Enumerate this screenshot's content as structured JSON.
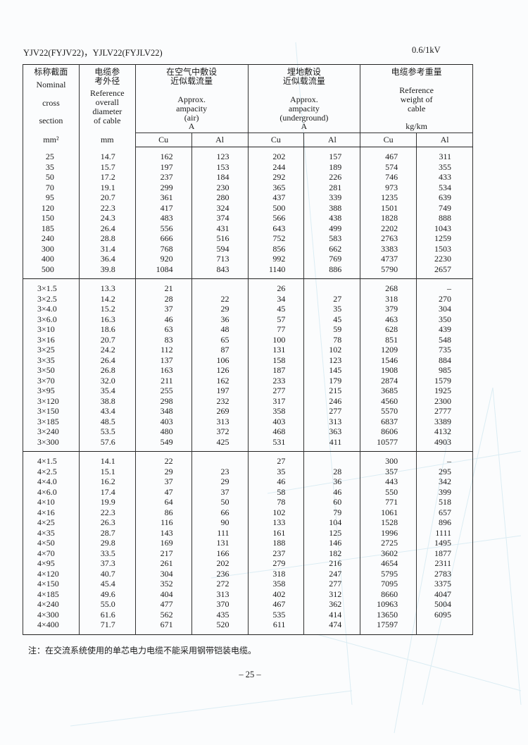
{
  "header": {
    "title": "YJV22(FYJV22)，YJLV22(FYJLV22)",
    "voltage": "0.6/1kV"
  },
  "columns": {
    "section": {
      "zh": "标称截面",
      "en": [
        "Nominal",
        "cross",
        "section"
      ],
      "unit": "mm²"
    },
    "diameter": {
      "zh": [
        "电缆参",
        "考外径"
      ],
      "en": [
        "Reference",
        "overall",
        "diameter",
        "of cable"
      ],
      "unit": "mm"
    },
    "air": {
      "zh": [
        "在空气中敷设",
        "近似载流量"
      ],
      "en": [
        "Approx.",
        "ampacity",
        "(air)"
      ],
      "unit": "A"
    },
    "underground": {
      "zh": [
        "埋地敷设",
        "近似载流量"
      ],
      "en": [
        "Approx.",
        "ampacity",
        "(underground)"
      ],
      "unit": "A"
    },
    "weight": {
      "zh": "电缆参考重量",
      "en": [
        "Reference",
        "weight of",
        "cable"
      ],
      "unit": "kg/km"
    },
    "sub": [
      "Cu",
      "Al",
      "Cu",
      "Al",
      "Cu",
      "Al"
    ]
  },
  "groups": [
    [
      [
        "25",
        "14.7",
        "162",
        "123",
        "202",
        "157",
        "467",
        "311"
      ],
      [
        "35",
        "15.7",
        "197",
        "153",
        "244",
        "189",
        "574",
        "355"
      ],
      [
        "50",
        "17.2",
        "237",
        "184",
        "292",
        "226",
        "746",
        "433"
      ],
      [
        "70",
        "19.1",
        "299",
        "230",
        "365",
        "281",
        "973",
        "534"
      ],
      [
        "95",
        "20.7",
        "361",
        "280",
        "437",
        "339",
        "1235",
        "639"
      ],
      [
        "120",
        "22.3",
        "417",
        "324",
        "500",
        "388",
        "1501",
        "749"
      ],
      [
        "150",
        "24.3",
        "483",
        "374",
        "566",
        "438",
        "1828",
        "888"
      ],
      [
        "185",
        "26.4",
        "556",
        "431",
        "643",
        "499",
        "2202",
        "1043"
      ],
      [
        "240",
        "28.8",
        "666",
        "516",
        "752",
        "583",
        "2763",
        "1259"
      ],
      [
        "300",
        "31.4",
        "768",
        "594",
        "856",
        "662",
        "3383",
        "1503"
      ],
      [
        "400",
        "36.4",
        "920",
        "713",
        "992",
        "769",
        "4737",
        "2230"
      ],
      [
        "500",
        "39.8",
        "1084",
        "843",
        "1140",
        "886",
        "5790",
        "2657"
      ]
    ],
    [
      [
        "3×1.5",
        "13.3",
        "21",
        "",
        "26",
        "",
        "268",
        "–"
      ],
      [
        "3×2.5",
        "14.2",
        "28",
        "22",
        "34",
        "27",
        "318",
        "270"
      ],
      [
        "3×4.0",
        "15.2",
        "37",
        "29",
        "45",
        "35",
        "379",
        "304"
      ],
      [
        "3×6.0",
        "16.3",
        "46",
        "36",
        "57",
        "45",
        "463",
        "350"
      ],
      [
        "3×10",
        "18.6",
        "63",
        "48",
        "77",
        "59",
        "628",
        "439"
      ],
      [
        "3×16",
        "20.7",
        "83",
        "65",
        "100",
        "78",
        "851",
        "548"
      ],
      [
        "3×25",
        "24.2",
        "112",
        "87",
        "131",
        "102",
        "1209",
        "735"
      ],
      [
        "3×35",
        "26.4",
        "137",
        "106",
        "158",
        "123",
        "1546",
        "884"
      ],
      [
        "3×50",
        "26.8",
        "163",
        "126",
        "187",
        "145",
        "1908",
        "985"
      ],
      [
        "3×70",
        "32.0",
        "211",
        "162",
        "233",
        "179",
        "2874",
        "1579"
      ],
      [
        "3×95",
        "35.4",
        "255",
        "197",
        "277",
        "215",
        "3685",
        "1925"
      ],
      [
        "3×120",
        "38.8",
        "298",
        "232",
        "317",
        "246",
        "4560",
        "2300"
      ],
      [
        "3×150",
        "43.4",
        "348",
        "269",
        "358",
        "277",
        "5570",
        "2777"
      ],
      [
        "3×185",
        "48.5",
        "403",
        "313",
        "403",
        "313",
        "6837",
        "3389"
      ],
      [
        "3×240",
        "53.5",
        "480",
        "372",
        "468",
        "363",
        "8606",
        "4132"
      ],
      [
        "3×300",
        "57.6",
        "549",
        "425",
        "531",
        "411",
        "10577",
        "4903"
      ]
    ],
    [
      [
        "4×1.5",
        "14.1",
        "22",
        "",
        "27",
        "",
        "300",
        "–"
      ],
      [
        "4×2.5",
        "15.1",
        "29",
        "23",
        "35",
        "28",
        "357",
        "295"
      ],
      [
        "4×4.0",
        "16.2",
        "37",
        "29",
        "46",
        "36",
        "443",
        "342"
      ],
      [
        "4×6.0",
        "17.4",
        "47",
        "37",
        "58",
        "46",
        "550",
        "399"
      ],
      [
        "4×10",
        "19.9",
        "64",
        "50",
        "78",
        "60",
        "771",
        "518"
      ],
      [
        "4×16",
        "22.3",
        "86",
        "66",
        "102",
        "79",
        "1061",
        "657"
      ],
      [
        "4×25",
        "26.3",
        "116",
        "90",
        "133",
        "104",
        "1528",
        "896"
      ],
      [
        "4×35",
        "28.7",
        "143",
        "111",
        "161",
        "125",
        "1996",
        "1111"
      ],
      [
        "4×50",
        "29.8",
        "169",
        "131",
        "188",
        "146",
        "2725",
        "1495"
      ],
      [
        "4×70",
        "33.5",
        "217",
        "166",
        "237",
        "182",
        "3602",
        "1877"
      ],
      [
        "4×95",
        "37.3",
        "261",
        "202",
        "279",
        "216",
        "4654",
        "2311"
      ],
      [
        "4×120",
        "40.7",
        "304",
        "236",
        "318",
        "247",
        "5795",
        "2783"
      ],
      [
        "4×150",
        "45.4",
        "352",
        "272",
        "358",
        "277",
        "7095",
        "3375"
      ],
      [
        "4×185",
        "49.6",
        "404",
        "313",
        "402",
        "312",
        "8660",
        "4047"
      ],
      [
        "4×240",
        "55.0",
        "477",
        "370",
        "467",
        "362",
        "10963",
        "5004"
      ],
      [
        "4×300",
        "61.6",
        "562",
        "435",
        "535",
        "414",
        "13650",
        "6095"
      ],
      [
        "4×400",
        "71.7",
        "671",
        "520",
        "611",
        "474",
        "17597",
        ""
      ]
    ]
  ],
  "footnote": "注：在交流系统使用的单芯电力电缆不能采用钢带铠装电缆。",
  "page_number": "– 25 –",
  "colors": {
    "ink": "#1a1a1a",
    "watermark": "#cfe6ef"
  }
}
